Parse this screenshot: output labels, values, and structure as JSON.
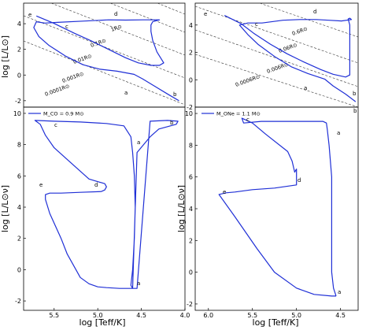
{
  "chart_data": [
    {
      "type": "line",
      "panel": "top-left",
      "ylabel": "log [L/L⊙]",
      "xlim": [
        5.9,
        4.0
      ],
      "ylim": [
        -2.5,
        5.6
      ],
      "xticks": [],
      "yticks": [
        -2,
        0,
        2,
        4
      ],
      "series": [
        {
          "x": [
            5.75,
            5.55,
            5.3,
            5.1,
            4.9,
            4.7,
            4.55,
            4.4,
            4.3,
            4.25,
            4.33,
            4.38,
            4.4,
            4.4,
            4.38,
            4.3,
            4.5,
            4.7,
            4.9,
            5.2,
            5.5,
            5.65,
            5.75,
            5.78,
            5.72,
            5.6,
            5.4,
            5.2,
            5.0,
            4.8,
            4.6,
            4.5,
            4.35,
            4.2,
            4.07
          ],
          "y": [
            4.6,
            4.05,
            3.25,
            2.65,
            2.0,
            1.35,
            0.95,
            0.75,
            0.75,
            0.95,
            1.8,
            2.7,
            3.4,
            3.9,
            4.15,
            4.3,
            4.3,
            4.28,
            4.3,
            4.2,
            4.1,
            4.05,
            4.15,
            3.7,
            3.0,
            2.3,
            1.45,
            0.8,
            0.45,
            0.3,
            0.05,
            -0.3,
            -0.9,
            -1.5,
            -2.0
          ]
        }
      ],
      "radius_lines": [
        "0.0001R⊙",
        "0.001R⊙",
        "0.01R⊙",
        "0.1R⊙",
        "1R⊙"
      ],
      "point_labels": [
        "a",
        "b",
        "c",
        "d",
        "e"
      ]
    },
    {
      "type": "line",
      "panel": "top-right",
      "xlim": [
        6.25,
        4.3
      ],
      "ylim": [
        -2.0,
        5.6
      ],
      "xticks": [],
      "yticks": [
        -2,
        0,
        2,
        4
      ],
      "series": [
        {
          "x": [
            5.9,
            5.7,
            5.55,
            5.35,
            5.15,
            4.95,
            4.75,
            4.6,
            4.45,
            4.4,
            4.4,
            4.4,
            4.42,
            4.4,
            4.38,
            4.5,
            4.65,
            4.8,
            5.0,
            5.2,
            5.45,
            5.62,
            5.72,
            5.62,
            5.5,
            5.3,
            5.1,
            4.9,
            4.7,
            4.6,
            4.45,
            4.33
          ],
          "y": [
            4.7,
            4.1,
            3.4,
            2.6,
            1.9,
            1.3,
            0.75,
            0.4,
            0.2,
            0.35,
            2.5,
            4.0,
            4.45,
            4.5,
            4.4,
            4.3,
            4.35,
            4.4,
            4.4,
            4.35,
            4.15,
            4.15,
            4.0,
            3.3,
            2.6,
            1.7,
            0.95,
            0.45,
            0.05,
            -0.45,
            -1.05,
            -1.6
          ]
        }
      ],
      "radius_lines": [
        "0.0006R⊙",
        "0.006R⊙",
        "0.06R⊙",
        "0.6R⊙"
      ],
      "point_labels": [
        "a",
        "b",
        "c",
        "d",
        "e"
      ]
    },
    {
      "type": "line",
      "panel": "bottom-left",
      "xlabel": "log [Teff/K]",
      "ylabel": "log [L/L⊙ν]",
      "xlim": [
        5.85,
        4.0
      ],
      "ylim": [
        -2.6,
        10.4
      ],
      "xticks": [
        5.5,
        5.0,
        4.5,
        4.0
      ],
      "yticks": [
        -2,
        0,
        2,
        4,
        6,
        8,
        10
      ],
      "legend": "M_CO = 0.9 M⊙",
      "legend_placement": "upper-left",
      "series": [
        {
          "x": [
            4.6,
            4.62,
            4.6,
            4.58,
            4.57,
            4.58,
            4.6,
            4.62,
            4.7,
            4.9,
            5.2,
            5.5,
            5.72,
            5.66,
            5.6,
            5.5,
            5.3,
            5.1,
            4.92,
            4.9,
            4.92,
            4.96,
            5.2,
            5.42,
            5.55,
            5.6,
            5.6,
            5.55,
            5.42,
            5.35,
            5.25,
            5.2,
            5.1,
            5.0,
            4.9,
            4.75,
            4.55,
            4.4,
            4.2,
            4.08,
            4.1,
            4.3,
            4.4,
            4.55,
            4.6
          ],
          "y": [
            -1.2,
            -1.0,
            0.0,
            2.0,
            4.0,
            6.0,
            7.5,
            8.5,
            9.2,
            9.35,
            9.45,
            9.5,
            9.55,
            9.3,
            8.6,
            7.8,
            6.8,
            5.8,
            5.5,
            5.3,
            5.1,
            5.0,
            4.95,
            4.9,
            4.9,
            4.8,
            4.5,
            3.6,
            2.0,
            1.0,
            0.0,
            -0.5,
            -0.9,
            -1.1,
            -1.15,
            -1.2,
            -1.2,
            9.5,
            9.55,
            9.5,
            9.3,
            9.0,
            8.5,
            7.5,
            -1.2
          ]
        }
      ],
      "point_labels": [
        "a",
        "b",
        "c",
        "d",
        "e",
        "a"
      ]
    },
    {
      "type": "line",
      "panel": "bottom-right",
      "xlabel": "log [Teff/K]",
      "ylabel": "log [L/L⊙ν]",
      "xlim": [
        6.15,
        4.3
      ],
      "ylim": [
        -2.4,
        10.4
      ],
      "xticks": [
        6.0,
        5.5,
        5.0,
        4.5
      ],
      "yticks": [
        -2,
        0,
        2,
        4,
        6,
        8,
        10
      ],
      "legend": "M_ONe = 1.1 M⊙",
      "legend_placement": "upper-left",
      "series": [
        {
          "x": [
            4.55,
            4.58,
            4.6,
            4.6,
            4.6,
            4.63,
            4.65,
            4.66,
            4.7,
            4.8,
            5.0,
            5.4,
            5.6,
            5.62,
            5.5,
            5.35,
            5.1,
            5.05,
            5.02,
            5.0,
            5.0,
            5.25,
            5.5,
            5.7,
            5.8,
            5.88,
            5.7,
            5.45,
            5.25,
            5.0,
            4.8,
            4.6,
            4.55
          ],
          "y": [
            -1.5,
            -1.0,
            0.0,
            3.0,
            6.0,
            8.0,
            9.0,
            9.4,
            9.5,
            9.5,
            9.5,
            9.5,
            9.4,
            9.7,
            9.4,
            8.7,
            7.6,
            7.0,
            6.3,
            6.5,
            5.5,
            5.3,
            5.2,
            5.05,
            5.0,
            4.9,
            3.5,
            1.5,
            0.0,
            -1.0,
            -1.4,
            -1.5,
            -1.5
          ]
        }
      ],
      "point_labels": [
        "a",
        "b",
        "c",
        "d",
        "e",
        "a"
      ]
    }
  ]
}
